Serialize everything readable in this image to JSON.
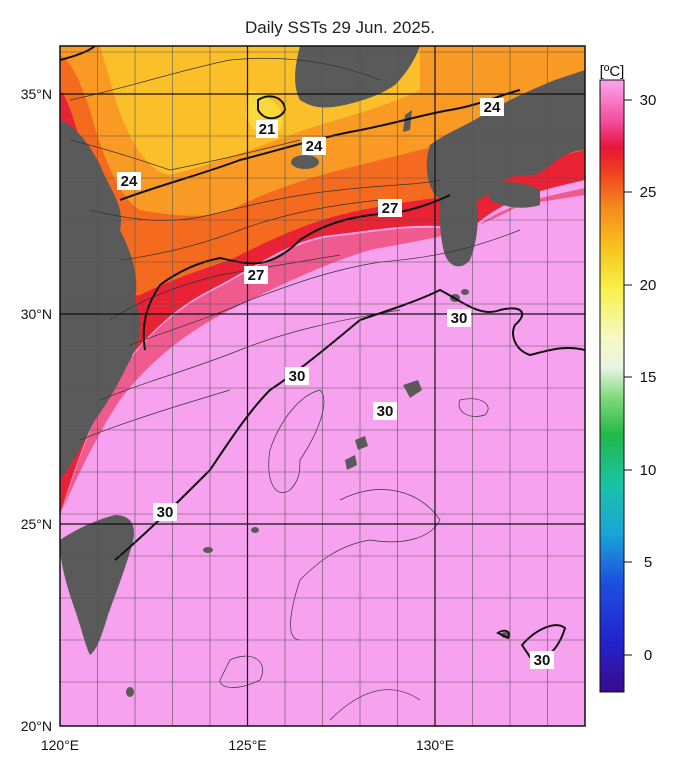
{
  "title": "Daily SSTs 29 Jun. 2025.",
  "colorbar": {
    "unit": "[ºC]",
    "ticks": [
      "30",
      "25",
      "20",
      "15",
      "10",
      "5",
      "0"
    ],
    "range": [
      -2,
      31
    ],
    "tick_values": [
      30,
      25,
      20,
      15,
      10,
      5,
      0
    ]
  },
  "map": {
    "lon_range": [
      120,
      134
    ],
    "lat_range": [
      20,
      36
    ],
    "lat_labels": [
      "35°N",
      "30°N",
      "25°N",
      "20°N"
    ],
    "lon_labels": [
      "120°E",
      "125°E",
      "130°E"
    ],
    "grid_step_deg": 1,
    "land_color": "#5a5a5a",
    "contour_interval": 1,
    "bold_contours": [
      21,
      24,
      27,
      30
    ]
  },
  "contour_labels": [
    {
      "text": "21"
    },
    {
      "text": "24"
    },
    {
      "text": "24"
    },
    {
      "text": "24"
    },
    {
      "text": "27"
    },
    {
      "text": "27"
    },
    {
      "text": "30"
    },
    {
      "text": "30"
    },
    {
      "text": "30"
    },
    {
      "text": "30"
    },
    {
      "text": "30"
    }
  ]
}
